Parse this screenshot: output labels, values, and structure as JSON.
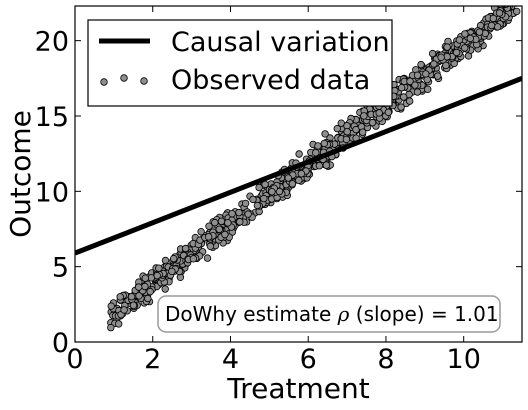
{
  "chart_data": {
    "type": "scatter",
    "xlabel": "Treatment",
    "ylabel": "Outcome",
    "xlim": [
      0,
      11.5
    ],
    "ylim": [
      0,
      22.3
    ],
    "xticks": [
      0,
      2,
      4,
      6,
      8,
      10
    ],
    "yticks": [
      0,
      5,
      10,
      15,
      20
    ],
    "grid": false,
    "legend_position": "top-left",
    "series": [
      {
        "name": "Causal variation",
        "kind": "line",
        "color": "#000000",
        "x": [
          0,
          11.5
        ],
        "y": [
          5.9,
          17.5
        ]
      },
      {
        "name": "Observed data",
        "kind": "scatter",
        "color": "#8f8f8f",
        "edge_color": "#000000",
        "x_range": [
          0.9,
          11.4
        ],
        "fit": {
          "slope": 1.98,
          "intercept": -0.1
        },
        "spread": 0.45
      }
    ],
    "annotation": {
      "prefix": "DoWhy estimate ",
      "symbol": "ρ",
      "suffix": " (slope) = 1.01",
      "position": "bottom-right"
    }
  }
}
